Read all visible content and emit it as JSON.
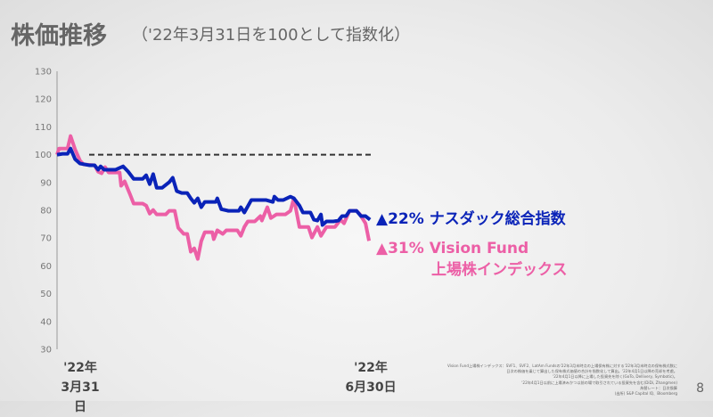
{
  "title": "株価推移",
  "subtitle": "（'22年3月31日を100として指数化）",
  "chart_data": {
    "type": "line",
    "title": "株価推移",
    "ylim": [
      30,
      130
    ],
    "yticks": [
      "30",
      "40",
      "50",
      "60",
      "70",
      "80",
      "90",
      "100",
      "110",
      "120",
      "130"
    ],
    "xlim": [
      0,
      63
    ],
    "x_labels": [
      {
        "year": "'22年",
        "date": "3月31日"
      },
      {
        "year": "'22年",
        "date": "6月30日"
      }
    ],
    "reference_line": {
      "value": 100,
      "style": "dashed"
    },
    "series": [
      {
        "name": "ナスダック総合指数",
        "change": "▲22%",
        "color": "#0a23b8",
        "points": [
          [
            0,
            100
          ],
          [
            1.1,
            100.3
          ],
          [
            2.1,
            100.3
          ],
          [
            2.7,
            102.2
          ],
          [
            3.6,
            98.4
          ],
          [
            4.6,
            96.8
          ],
          [
            6.4,
            96.2
          ],
          [
            7.5,
            96.2
          ],
          [
            8.2,
            94.6
          ],
          [
            8.7,
            95.8
          ],
          [
            9.4,
            94.6
          ],
          [
            11.7,
            94.6
          ],
          [
            13.2,
            95.8
          ],
          [
            14.2,
            93.9
          ],
          [
            15.3,
            91.3
          ],
          [
            17.1,
            91.3
          ],
          [
            17.8,
            92.6
          ],
          [
            18.5,
            89.4
          ],
          [
            19.2,
            93
          ],
          [
            19.9,
            88.1
          ],
          [
            21,
            88.1
          ],
          [
            22.4,
            90.1
          ],
          [
            23.1,
            91.7
          ],
          [
            23.9,
            86.9
          ],
          [
            24.9,
            86.2
          ],
          [
            26,
            86.2
          ],
          [
            26.7,
            84.3
          ],
          [
            27.4,
            82.7
          ],
          [
            28.1,
            84.3
          ],
          [
            28.8,
            81.1
          ],
          [
            29.5,
            83
          ],
          [
            30.3,
            83
          ],
          [
            31.7,
            83
          ],
          [
            32,
            84.3
          ],
          [
            32.8,
            80.4
          ],
          [
            34.2,
            79.8
          ],
          [
            35.2,
            79.8
          ],
          [
            36.3,
            79.8
          ],
          [
            36.7,
            81.1
          ],
          [
            37.4,
            79.2
          ],
          [
            38.8,
            83.7
          ],
          [
            41.7,
            83.7
          ],
          [
            43.1,
            83
          ],
          [
            43.4,
            84.9
          ],
          [
            44.1,
            83.7
          ],
          [
            45.2,
            83.7
          ],
          [
            46.6,
            84.9
          ],
          [
            47.3,
            84.3
          ],
          [
            48.4,
            81.7
          ],
          [
            49.1,
            79.2
          ],
          [
            50.6,
            79.2
          ],
          [
            51.3,
            76.6
          ],
          [
            52,
            76.3
          ],
          [
            52.7,
            78.5
          ],
          [
            53,
            74.7
          ],
          [
            53.8,
            76
          ],
          [
            55.2,
            76
          ],
          [
            56.2,
            76.3
          ],
          [
            56.9,
            77.9
          ],
          [
            57.7,
            77.9
          ],
          [
            58.4,
            79.8
          ],
          [
            59.8,
            79.8
          ],
          [
            60.7,
            77.9
          ],
          [
            61.6,
            77.9
          ],
          [
            62.5,
            76.6
          ]
        ]
      },
      {
        "name": "Vision Fund 上場株インデックス",
        "name_line1": "Vision Fund",
        "name_line2": "上場株インデックス",
        "change": "▲31%",
        "color": "#ec5fa6",
        "points": [
          [
            0,
            100
          ],
          [
            0.4,
            102.2
          ],
          [
            2.1,
            102.2
          ],
          [
            2.7,
            106.7
          ],
          [
            3.6,
            101.9
          ],
          [
            4.6,
            97.8
          ],
          [
            5.3,
            96.5
          ],
          [
            7.5,
            96.2
          ],
          [
            8.2,
            93.9
          ],
          [
            8.9,
            93.3
          ],
          [
            9.6,
            95.5
          ],
          [
            10.3,
            93.6
          ],
          [
            12.5,
            93.6
          ],
          [
            12.8,
            88.8
          ],
          [
            13.5,
            90.4
          ],
          [
            14.6,
            85.6
          ],
          [
            15.3,
            82.4
          ],
          [
            17.1,
            82.4
          ],
          [
            17.8,
            81.7
          ],
          [
            18.5,
            78.8
          ],
          [
            19.2,
            80.1
          ],
          [
            19.9,
            78.5
          ],
          [
            21.7,
            78.5
          ],
          [
            22.4,
            79.8
          ],
          [
            23.5,
            79.8
          ],
          [
            24.2,
            73.7
          ],
          [
            25.3,
            71.5
          ],
          [
            26,
            71.5
          ],
          [
            26.7,
            65.1
          ],
          [
            27.4,
            66.3
          ],
          [
            28.1,
            62.5
          ],
          [
            28.8,
            68.9
          ],
          [
            29.5,
            72.1
          ],
          [
            31,
            72.1
          ],
          [
            31.3,
            69.6
          ],
          [
            32,
            72.8
          ],
          [
            33.1,
            71.5
          ],
          [
            33.8,
            72.8
          ],
          [
            36,
            72.8
          ],
          [
            36.7,
            70.8
          ],
          [
            37.4,
            74
          ],
          [
            38.1,
            76
          ],
          [
            39.5,
            76
          ],
          [
            40.6,
            77.9
          ],
          [
            40.9,
            76.3
          ],
          [
            42,
            81.1
          ],
          [
            42.7,
            77.2
          ],
          [
            43.8,
            78.5
          ],
          [
            45.6,
            78.5
          ],
          [
            46.6,
            79.8
          ],
          [
            47.3,
            84.3
          ],
          [
            48.4,
            74
          ],
          [
            50.2,
            74
          ],
          [
            50.9,
            70.2
          ],
          [
            52,
            74
          ],
          [
            52.7,
            70.8
          ],
          [
            53.8,
            74
          ],
          [
            55.5,
            74
          ],
          [
            56.6,
            76.6
          ],
          [
            57.3,
            75.3
          ],
          [
            58.4,
            79.8
          ],
          [
            59.1,
            79.8
          ],
          [
            59.8,
            79.8
          ],
          [
            60.5,
            78.5
          ],
          [
            61.6,
            75.3
          ],
          [
            62.3,
            69
          ]
        ]
      }
    ]
  },
  "footnote": [
    "Vision Fund上場株インデックス：SVF1、SVF2、LatAm Fundsの'22年3月末時点の上場保有株に対する'22年3月末時点の保有株式数に",
    "日次の株価を乗じて算出した保有株式価値の合計を指数化して算出。'22年4月1日以降の売却を考慮。",
    "'22年4月1日以降に上場した投資先を除く(GoTo, Dellivery, Symbotic)。",
    "'22年4月1日以前に上場済みかつ以前の場で取引されている投資先を含む(DiDi, Zhangmen)",
    "為替レート：日次換算",
    "(出所) S&P Capital IQ、Bloomberg"
  ],
  "page_number": "8"
}
